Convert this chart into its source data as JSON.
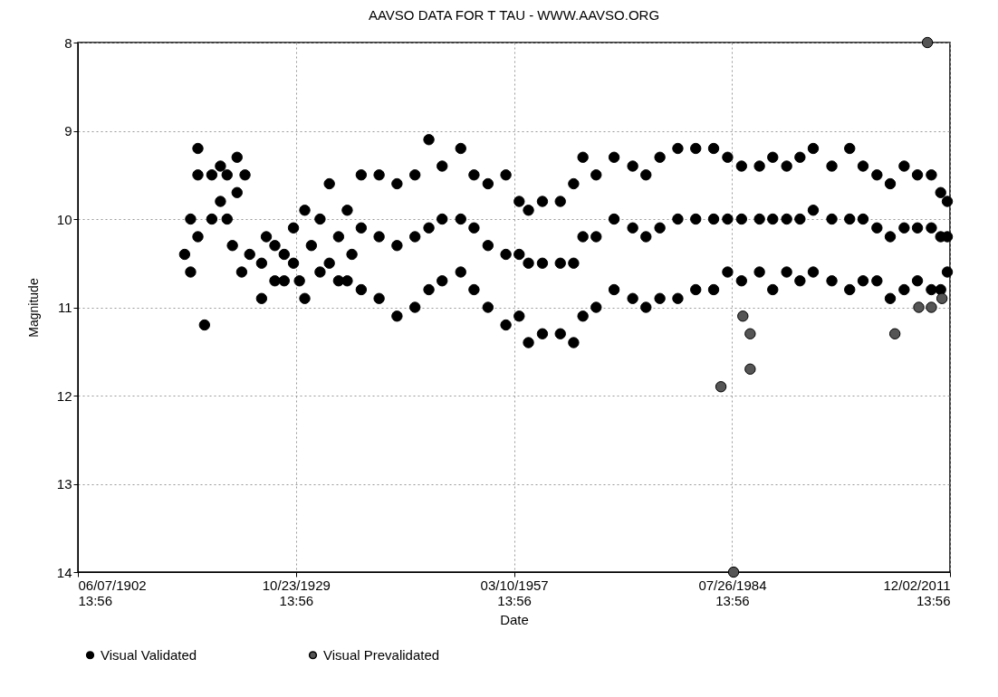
{
  "chart_data": {
    "type": "scatter",
    "title": "AAVSO DATA FOR T TAU - WWW.AAVSO.ORG",
    "xlabel": "Date",
    "ylabel": "Magnitude",
    "xlim": [
      "1902-06-07T13:56",
      "2011-12-02T13:56"
    ],
    "xticks": [
      {
        "value": "1902-06-07T13:56",
        "label": "06/07/1902\n13:56"
      },
      {
        "value": "1929-10-23T13:56",
        "label": "10/23/1929\n13:56"
      },
      {
        "value": "1957-03-10T13:56",
        "label": "03/10/1957\n13:56"
      },
      {
        "value": "1984-07-26T13:56",
        "label": "07/26/1984\n13:56"
      },
      {
        "value": "2011-12-02T13:56",
        "label": "12/02/2011\n13:56"
      }
    ],
    "ylim": [
      14,
      8
    ],
    "yticks": [
      8,
      9,
      10,
      11,
      12,
      13,
      14
    ],
    "grid": true,
    "legend": "bottom",
    "marker": "circle",
    "series": [
      {
        "name": "Visual Validated",
        "color": "#000000",
        "x": [
          "1915-11",
          "1916-08",
          "1916-08",
          "1917-07",
          "1917-07",
          "1917-07",
          "1918-05",
          "1919-04",
          "1919-04",
          "1920-05",
          "1920-05",
          "1921-03",
          "1921-03",
          "1921-11",
          "1922-06",
          "1922-06",
          "1923-01",
          "1923-06",
          "1924-01",
          "1925-07",
          "1925-07",
          "1926-02",
          "1927-03",
          "1927-03",
          "1928-05",
          "1928-05",
          "1929-07",
          "1929-07",
          "1930-04",
          "1930-12",
          "1930-12",
          "1931-10",
          "1932-11",
          "1932-11",
          "1934-01",
          "1934-01",
          "1935-03",
          "1935-03",
          "1936-04",
          "1936-04",
          "1936-11",
          "1938-01",
          "1938-01",
          "1938-01",
          "1940-04",
          "1940-04",
          "1940-04",
          "1942-07",
          "1942-07",
          "1942-07",
          "1944-10",
          "1944-10",
          "1944-10",
          "1946-07",
          "1946-07",
          "1946-07",
          "1948-03",
          "1948-03",
          "1948-03",
          "1950-07",
          "1950-07",
          "1950-07",
          "1952-03",
          "1952-03",
          "1952-03",
          "1953-12",
          "1953-12",
          "1953-12",
          "1956-03",
          "1956-03",
          "1956-03",
          "1957-11",
          "1957-11",
          "1957-11",
          "1959-01",
          "1959-01",
          "1959-01",
          "1960-10",
          "1960-10",
          "1960-10",
          "1963-01",
          "1963-01",
          "1963-01",
          "1964-09",
          "1964-09",
          "1964-09",
          "1965-11",
          "1965-11",
          "1965-11",
          "1967-07",
          "1967-07",
          "1967-07",
          "1969-10",
          "1969-10",
          "1969-10",
          "1972-02",
          "1972-02",
          "1972-02",
          "1973-10",
          "1973-10",
          "1973-10",
          "1975-07",
          "1975-07",
          "1975-07",
          "1977-10",
          "1977-10",
          "1977-10",
          "1980-01",
          "1980-01",
          "1980-01",
          "1982-04",
          "1982-04",
          "1982-04",
          "1984-01",
          "1984-01",
          "1984-01",
          "1985-10",
          "1985-10",
          "1985-10",
          "1988-01",
          "1988-01",
          "1988-01",
          "1989-09",
          "1989-09",
          "1989-09",
          "1991-06",
          "1991-06",
          "1991-06",
          "1993-02",
          "1993-02",
          "1993-02",
          "1994-10",
          "1994-10",
          "1994-10",
          "1997-02",
          "1997-02",
          "1997-02",
          "1999-05",
          "1999-05",
          "1999-05",
          "2001-01",
          "2001-01",
          "2001-01",
          "2002-10",
          "2002-10",
          "2002-10",
          "2004-06",
          "2004-06",
          "2004-06",
          "2006-03",
          "2006-03",
          "2006-03",
          "2007-11",
          "2007-11",
          "2007-11",
          "2009-08",
          "2009-08",
          "2009-08",
          "2010-10",
          "2010-10",
          "2010-10",
          "2011-08",
          "2011-08",
          "2011-08"
        ],
        "values": [
          10.4,
          10.6,
          10.0,
          9.2,
          9.5,
          10.2,
          11.2,
          9.5,
          10.0,
          9.4,
          9.8,
          9.5,
          10.0,
          10.3,
          9.3,
          9.7,
          10.6,
          9.5,
          10.4,
          10.9,
          10.5,
          10.2,
          10.3,
          10.7,
          10.7,
          10.4,
          10.1,
          10.5,
          10.7,
          9.9,
          10.9,
          10.3,
          10.0,
          10.6,
          9.6,
          10.5,
          10.2,
          10.7,
          9.9,
          10.7,
          10.4,
          9.5,
          10.8,
          10.1,
          9.5,
          10.9,
          10.2,
          9.6,
          11.1,
          10.3,
          9.5,
          11.0,
          10.2,
          9.1,
          10.8,
          10.1,
          9.4,
          10.7,
          10.0,
          9.2,
          10.6,
          10.0,
          9.5,
          10.8,
          10.1,
          9.6,
          11.0,
          10.3,
          9.5,
          11.2,
          10.4,
          9.8,
          11.1,
          10.4,
          9.9,
          11.4,
          10.5,
          9.8,
          11.3,
          10.5,
          9.8,
          11.3,
          10.5,
          9.6,
          11.4,
          10.5,
          9.3,
          11.1,
          10.2,
          9.5,
          11.0,
          10.2,
          9.3,
          10.8,
          10.0,
          9.4,
          10.9,
          10.1,
          9.5,
          11.0,
          10.2,
          9.3,
          10.9,
          10.1,
          9.2,
          10.9,
          10.0,
          9.2,
          10.8,
          10.0,
          9.2,
          10.8,
          10.0,
          9.3,
          10.6,
          10.0,
          9.4,
          10.7,
          10.0,
          9.4,
          10.6,
          10.0,
          9.3,
          10.8,
          10.0,
          9.4,
          10.6,
          10.0,
          9.3,
          10.7,
          10.0,
          9.2,
          10.6,
          9.9,
          9.4,
          10.7,
          10.0,
          9.2,
          10.8,
          10.0,
          9.4,
          10.7,
          10.0,
          9.5,
          10.7,
          10.1,
          9.6,
          10.9,
          10.2,
          9.4,
          10.8,
          10.1,
          9.5,
          10.7,
          10.1,
          9.5,
          10.8,
          10.1,
          9.7,
          10.8,
          10.2,
          9.8,
          10.6,
          10.2
        ]
      },
      {
        "name": "Visual Prevalidated",
        "color": "#555555",
        "x": [
          "1983-03",
          "1984-10",
          "1985-12",
          "1986-11",
          "1986-11",
          "2005-01",
          "2008-01",
          "2009-02",
          "2009-08",
          "2010-12"
        ],
        "values": [
          11.9,
          14.0,
          11.1,
          11.3,
          11.7,
          11.3,
          11.0,
          8.0,
          11.0,
          10.9
        ]
      }
    ]
  }
}
